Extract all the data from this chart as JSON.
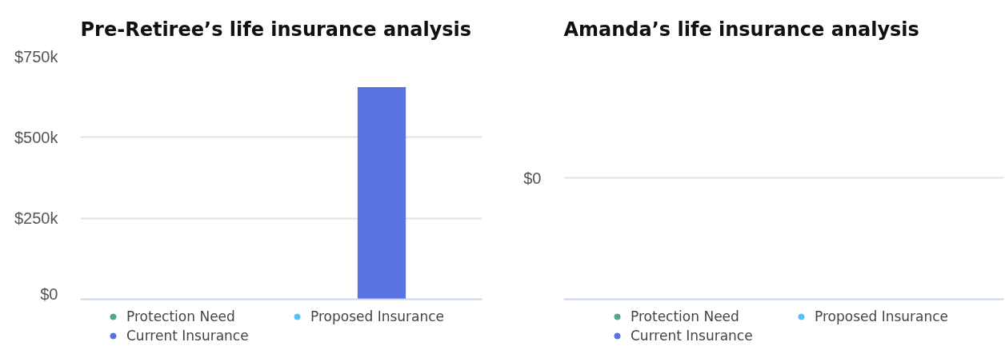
{
  "chart_data": [
    {
      "type": "bar",
      "title": "Pre-Retiree’s life insurance analysis",
      "categories": [
        null
      ],
      "series": [
        {
          "name": "Protection Need",
          "color": "#55a58a",
          "values": [
            0
          ]
        },
        {
          "name": "Proposed Insurance",
          "color": "#5bc0f0",
          "values": [
            0
          ]
        },
        {
          "name": "Current Insurance",
          "color": "#5872e0",
          "values": [
            655000
          ]
        }
      ],
      "ylim": [
        0,
        750000
      ],
      "yticks": [
        {
          "value": 0,
          "label": "$0"
        },
        {
          "value": 250000,
          "label": "$250k"
        },
        {
          "value": 500000,
          "label": "$500k"
        },
        {
          "value": 750000,
          "label": "$750k"
        }
      ],
      "grid": "y",
      "legend": "bottom",
      "tick_labels": "y"
    },
    {
      "type": "other",
      "title": "Amanda’s life insurance analysis",
      "series": [
        {
          "name": "Protection Need",
          "color": "#55a58a"
        },
        {
          "name": "Proposed Insurance",
          "color": "#5bc0f0"
        },
        {
          "name": "Current Insurance",
          "color": "#5872e0"
        }
      ],
      "annotations": [
        "$0"
      ],
      "legend": "bottom"
    }
  ]
}
